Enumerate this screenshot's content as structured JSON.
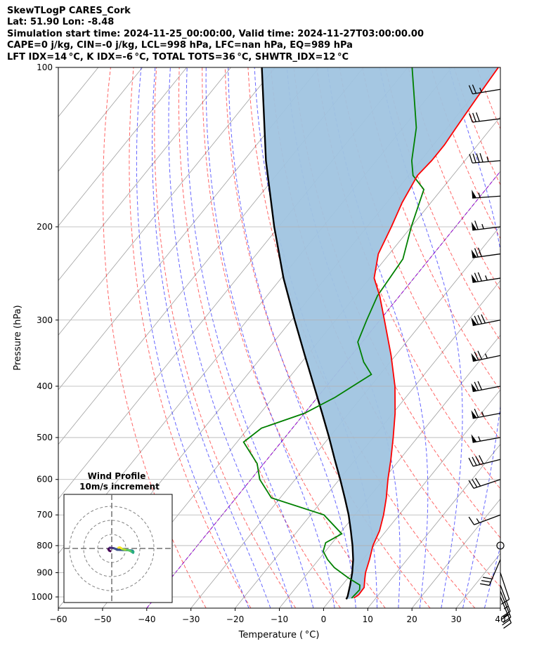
{
  "header": {
    "line1": "SkewTLogP CARES_Cork",
    "line2": "Lat: 51.90   Lon: -8.48",
    "line3": "Simulation start time: 2024-11-25_00:00:00, Valid time: 2024-11-27T03:00:00.00",
    "line4": "CAPE=0 j/kg, CIN=-0 j/kg, LCL=998 hPa, LFC=nan hPa, EQ=989 hPa",
    "line5": "LFT IDX=14 °C, K IDX=-6 °C, TOTAL TOTS=36 °C, SHWTR_IDX=12 °C"
  },
  "chart_data": {
    "type": "line",
    "subtype": "skew-t log-p",
    "xlabel": "Temperature ( °C)",
    "ylabel": "Pressure (hPa)",
    "xlim": [
      -60,
      40
    ],
    "ylim": [
      1050,
      100
    ],
    "y_scale": "log",
    "grid": true,
    "x_ticks": [
      "−60",
      "−50",
      "−40",
      "−30",
      "−20",
      "−10",
      "0",
      "10",
      "20",
      "30",
      "40"
    ],
    "y_ticks": [
      "100",
      "200",
      "300",
      "400",
      "500",
      "600",
      "700",
      "800",
      "900",
      "1000"
    ],
    "colors": {
      "temperature": "#ff0000",
      "dewpoint": "#008000",
      "parcel": "#000000",
      "fill": "#a0c4e0",
      "dry_adiabat": "#ff0000",
      "moist_adiabat": "#0000ff",
      "isotherm": "#808080",
      "freezing": "#9400d3"
    },
    "series": [
      {
        "key": "temperature",
        "points": [
          [
            1005,
            5.0
          ],
          [
            990,
            5.5
          ],
          [
            960,
            5.4
          ],
          [
            925,
            4.0
          ],
          [
            900,
            3.0
          ],
          [
            850,
            1.5
          ],
          [
            800,
            -0.3
          ],
          [
            750,
            -1.5
          ],
          [
            700,
            -3.5
          ],
          [
            650,
            -6.0
          ],
          [
            600,
            -9.0
          ],
          [
            550,
            -12.0
          ],
          [
            500,
            -15.5
          ],
          [
            450,
            -19.5
          ],
          [
            400,
            -24.5
          ],
          [
            350,
            -31.0
          ],
          [
            300,
            -39.0
          ],
          [
            270,
            -44.5
          ],
          [
            250,
            -49.0
          ],
          [
            225,
            -52.5
          ],
          [
            200,
            -54.5
          ],
          [
            180,
            -56.5
          ],
          [
            160,
            -58.0
          ],
          [
            150,
            -57.5
          ],
          [
            140,
            -57.5
          ],
          [
            130,
            -58.0
          ],
          [
            120,
            -58.5
          ],
          [
            110,
            -59.0
          ],
          [
            100,
            -59.5
          ]
        ]
      },
      {
        "key": "dewpoint",
        "points": [
          [
            1005,
            4.5
          ],
          [
            970,
            4.8
          ],
          [
            950,
            4.0
          ],
          [
            920,
            0.0
          ],
          [
            880,
            -5.0
          ],
          [
            850,
            -8.0
          ],
          [
            820,
            -10.5
          ],
          [
            790,
            -11.5
          ],
          [
            760,
            -9.5
          ],
          [
            700,
            -17.0
          ],
          [
            650,
            -32.0
          ],
          [
            600,
            -38.0
          ],
          [
            560,
            -41.5
          ],
          [
            510,
            -48.5
          ],
          [
            480,
            -47.0
          ],
          [
            450,
            -40.0
          ],
          [
            420,
            -36.0
          ],
          [
            380,
            -32.0
          ],
          [
            360,
            -36.0
          ],
          [
            330,
            -41.0
          ],
          [
            300,
            -43.0
          ],
          [
            270,
            -45.0
          ],
          [
            230,
            -46.0
          ],
          [
            200,
            -50.0
          ],
          [
            170,
            -54.0
          ],
          [
            160,
            -59.0
          ],
          [
            150,
            -62.0
          ],
          [
            130,
            -67.0
          ],
          [
            100,
            -79.0
          ]
        ]
      },
      {
        "key": "parcel",
        "points": [
          [
            1010,
            3.5
          ],
          [
            998,
            3.3
          ],
          [
            950,
            1.8
          ],
          [
            900,
            0.0
          ],
          [
            850,
            -2.2
          ],
          [
            800,
            -4.9
          ],
          [
            750,
            -8.0
          ],
          [
            700,
            -11.4
          ],
          [
            650,
            -15.4
          ],
          [
            600,
            -19.8
          ],
          [
            550,
            -24.7
          ],
          [
            500,
            -30.0
          ],
          [
            450,
            -36.0
          ],
          [
            400,
            -42.8
          ],
          [
            350,
            -50.5
          ],
          [
            300,
            -59.3
          ],
          [
            250,
            -69.5
          ],
          [
            200,
            -81.0
          ],
          [
            150,
            -95.0
          ],
          [
            100,
            -113.0
          ]
        ]
      }
    ],
    "wind_barbs": [
      {
        "p": 1000,
        "u": -5,
        "v": 12
      },
      {
        "p": 975,
        "u": -4,
        "v": 10
      },
      {
        "p": 950,
        "u": -3,
        "v": 8
      },
      {
        "p": 900,
        "u": -2,
        "v": 6
      },
      {
        "p": 850,
        "u": 6,
        "v": 14
      },
      {
        "p": 800,
        "u": 0,
        "v": 0
      },
      {
        "p": 700,
        "u": 8,
        "v": 3
      },
      {
        "p": 600,
        "u": 15,
        "v": 5
      },
      {
        "p": 550,
        "u": 20,
        "v": 5
      },
      {
        "p": 500,
        "u": 28,
        "v": 5
      },
      {
        "p": 450,
        "u": 32,
        "v": 6
      },
      {
        "p": 400,
        "u": 36,
        "v": 7
      },
      {
        "p": 350,
        "u": 38,
        "v": 8
      },
      {
        "p": 300,
        "u": 40,
        "v": 8
      },
      {
        "p": 250,
        "u": 38,
        "v": 6
      },
      {
        "p": 225,
        "u": 36,
        "v": 5
      },
      {
        "p": 200,
        "u": 33,
        "v": 4
      },
      {
        "p": 175,
        "u": 28,
        "v": 2
      },
      {
        "p": 150,
        "u": 24,
        "v": 2
      },
      {
        "p": 125,
        "u": 16,
        "v": 2
      },
      {
        "p": 110,
        "u": 12,
        "v": 2
      }
    ],
    "hodograph": {
      "title": "Wind Profile",
      "subtitle": "10m/s increment",
      "rings": [
        10,
        20,
        30
      ],
      "range": 40,
      "trace": [
        [
          -1,
          -2
        ],
        [
          -2,
          -1.5
        ],
        [
          -2.5,
          -0.5
        ],
        [
          -1.5,
          0.5
        ],
        [
          0,
          0.5
        ],
        [
          2,
          0
        ],
        [
          4,
          -1
        ],
        [
          8,
          -1.2
        ],
        [
          12,
          -1.3
        ],
        [
          15,
          -1.5
        ],
        [
          15.6,
          -1.8
        ],
        [
          16,
          -2.5
        ],
        [
          15.8,
          -3.2
        ],
        [
          14,
          -2
        ],
        [
          12,
          -1.2
        ],
        [
          10,
          -1
        ],
        [
          8,
          -0.5
        ],
        [
          7,
          0.2
        ],
        [
          6,
          0.8
        ],
        [
          5,
          0.6
        ]
      ]
    }
  }
}
